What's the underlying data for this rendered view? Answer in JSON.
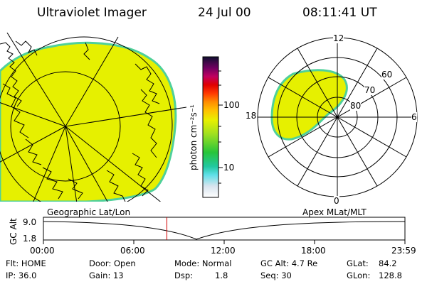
{
  "header": {
    "title": "Ultraviolet Imager",
    "date": "24 Jul 00",
    "time": "08:11:41 UT"
  },
  "panels": {
    "left_label": "Geographic Lat/Lon",
    "right_label": "Apex MLat/MLT"
  },
  "colorbar": {
    "unit_label": "photon cm⁻²s⁻¹",
    "ticks": [
      "100",
      "10"
    ]
  },
  "polar_plot": {
    "mlt_labels": [
      "12",
      "6",
      "0",
      "18"
    ],
    "mlat_labels": [
      "60",
      "70",
      "80"
    ]
  },
  "altitude_plot": {
    "ylabel": "GC Alt",
    "y_ticks": [
      "9.0",
      "1.8"
    ],
    "x_ticks": [
      "00:00",
      "06:00",
      "12:00",
      "18:00",
      "23:59"
    ],
    "current_time_hours": 8.195,
    "marker_color": "#d00000"
  },
  "status": {
    "flt": "Flt: HOME",
    "ip": "IP: 36.0",
    "door": "Door: Open",
    "gain": "Gain: 13",
    "mode": "Mode: Normal",
    "dsp_label": "Dsp:",
    "dsp_value": "1.8",
    "gc_alt": "GC Alt: 4.7 Re",
    "seq": "Seq: 30",
    "glat": "GLat:",
    "glat_value": "84.2",
    "glon": "GLon:",
    "glon_value": "128.8"
  },
  "colors": {
    "emission_fill": "#e6f000",
    "emission_edge": "#4fd09a"
  }
}
